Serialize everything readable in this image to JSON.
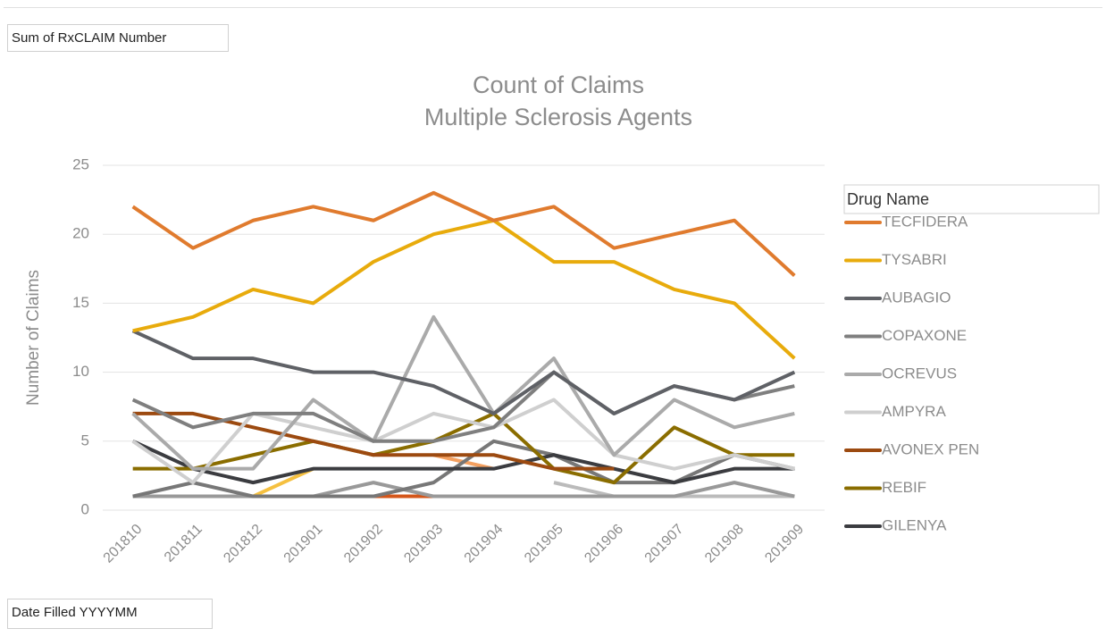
{
  "field_buttons": {
    "values": "Sum of RxCLAIM Number",
    "axis": "Date Filled YYYYMM"
  },
  "chart_data": {
    "type": "line",
    "title": "Count of Claims",
    "subtitle": "Multiple Sclerosis Agents",
    "y_label": "Number of Claims",
    "legend_title": "Drug Name",
    "legend": "right",
    "grid": true,
    "categories": [
      "201810",
      "201811",
      "201812",
      "201901",
      "201902",
      "201903",
      "201904",
      "201905",
      "201906",
      "201907",
      "201908",
      "201909"
    ],
    "ylim": [
      0,
      25
    ],
    "yticks": [
      0,
      5,
      10,
      15,
      20,
      25
    ],
    "series": [
      {
        "name": "TECFIDERA",
        "color": "#e07b2e",
        "values": [
          22,
          19,
          21,
          22,
          21,
          23,
          21,
          22,
          19,
          20,
          21,
          17
        ]
      },
      {
        "name": "TYSABRI",
        "color": "#e8ab0c",
        "values": [
          13,
          14,
          16,
          15,
          18,
          20,
          21,
          18,
          18,
          16,
          15,
          11
        ]
      },
      {
        "name": "AUBAGIO",
        "color": "#5f6166",
        "values": [
          13,
          11,
          11,
          10,
          10,
          9,
          7,
          10,
          7,
          9,
          8,
          10
        ]
      },
      {
        "name": "COPAXONE",
        "color": "#7f7f7f",
        "values": [
          8,
          6,
          7,
          7,
          5,
          5,
          6,
          10,
          7,
          9,
          8,
          9
        ]
      },
      {
        "name": "OCREVUS",
        "color": "#aaaaaa",
        "values": [
          7,
          3,
          3,
          8,
          5,
          14,
          7,
          11,
          4,
          8,
          6,
          7
        ]
      },
      {
        "name": "AMPYRA",
        "color": "#cfcfcf",
        "values": [
          5,
          2,
          7,
          6,
          5,
          7,
          6,
          8,
          4,
          3,
          4,
          3
        ]
      },
      {
        "name": "AVONEX PEN",
        "color": "#9c4a10",
        "values": [
          7,
          7,
          6,
          5,
          4,
          4,
          4,
          3,
          3,
          null,
          null,
          null
        ]
      },
      {
        "name": "REBIF",
        "color": "#8a6d00",
        "values": [
          3,
          3,
          4,
          5,
          4,
          5,
          7,
          3,
          2,
          6,
          4,
          4
        ]
      },
      {
        "name": "GILENYA",
        "color": "#3b3c40",
        "values": [
          5,
          3,
          2,
          3,
          3,
          3,
          3,
          4,
          3,
          2,
          3,
          3
        ]
      },
      {
        "color": "#777777",
        "values": [
          1,
          2,
          1,
          1,
          1,
          2,
          5,
          4,
          2,
          2,
          4,
          3
        ]
      },
      {
        "color": "#999999",
        "values": [
          1,
          1,
          1,
          1,
          2,
          1,
          1,
          1,
          1,
          1,
          2,
          1
        ]
      },
      {
        "color": "#bbbbbb",
        "values": [
          null,
          null,
          null,
          null,
          null,
          null,
          null,
          2,
          1,
          1,
          1,
          1
        ]
      },
      {
        "color": "#f5c040",
        "values": [
          null,
          1,
          1,
          3,
          null,
          null,
          null,
          null,
          null,
          null,
          null,
          null
        ]
      },
      {
        "color": "#d4561a",
        "values": [
          null,
          null,
          null,
          null,
          1,
          1,
          null,
          null,
          null,
          null,
          null,
          null
        ]
      },
      {
        "color": "#f4a060",
        "values": [
          null,
          null,
          null,
          null,
          null,
          4,
          3,
          null,
          null,
          null,
          null,
          null
        ]
      }
    ]
  }
}
